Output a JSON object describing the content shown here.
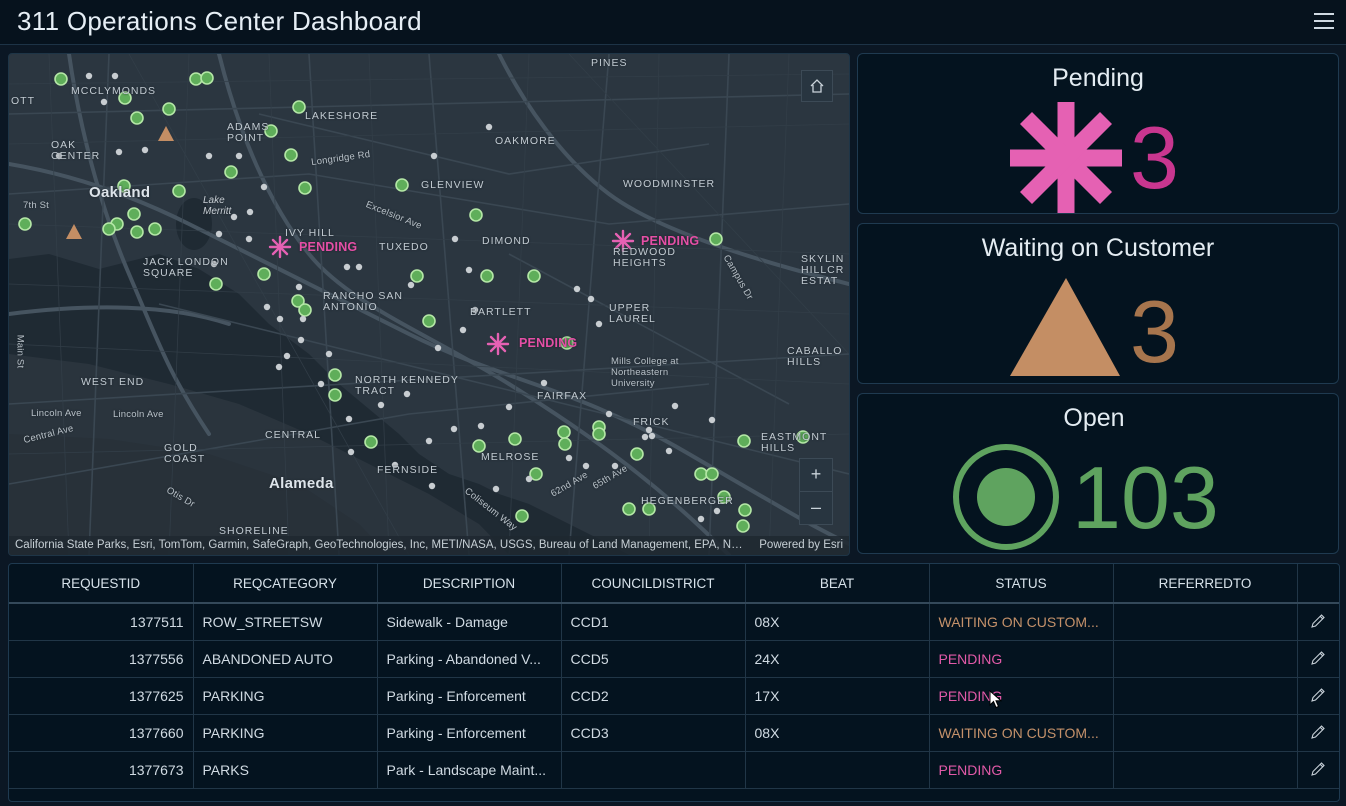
{
  "header": {
    "title": "311 Operations Center Dashboard"
  },
  "map": {
    "labels": {
      "pines": "PINES",
      "mcclymonds": "MCCLYMONDS",
      "ott": "OTT",
      "lakeshore": "LAKESHORE",
      "adams_point": "ADAMS\nPOINT",
      "oak_center": "OAK\nCENTER",
      "longridge": "Longridge Rd",
      "oakmore": "OAKMORE",
      "oakland": "Oakland",
      "glenview": "GLENVIEW",
      "woodminster": "WOODMINSTER",
      "seventh": "7th St",
      "lake_merritt": "Lake\nMerritt",
      "excelsior": "Excelsior Ave",
      "ivy_hill": "IVY HILL",
      "tuxedo": "TUXEDO",
      "dimond": "DIMOND",
      "redwood": "REDWOOD\nHEIGHTS",
      "skyline": "SKYLIN\nHILLCR\nESTAT",
      "jack_london": "JACK LONDON\nSQUARE",
      "campus": "Campus Dr",
      "rancho": "RANCHO SAN\nANTONIO",
      "bartlett": "BARTLETT",
      "upper_laurel": "UPPER\nLAUREL",
      "main_st": "Main St",
      "mills": "Mills College at\nNortheastern\nUniversity",
      "caballo": "CABALLO\nHILLS",
      "west_end": "WEST END",
      "north_kennedy": "NORTH KENNEDY\nTRACT",
      "fairfax": "FAIRFAX",
      "lincoln_ave1": "Lincoln Ave",
      "lincoln_ave2": "Lincoln Ave",
      "central_ave": "Central Ave",
      "frick": "FRICK",
      "central": "CENTRAL",
      "eastmont": "EASTMONT\nHILLS",
      "gold_coast": "GOLD\nCOAST",
      "melrose": "MELROSE",
      "otis": "Otis Dr",
      "fernside": "FERNSIDE",
      "ave62": "62nd Ave",
      "ave65": "65th Ave",
      "alameda": "Alameda",
      "hegenberger": "HEGENBERGER",
      "coliseum": "Coliseum Way",
      "shoreline": "SHORELINE"
    },
    "pending_label": "PENDING",
    "attribution": "California State Parks, Esri, TomTom, Garmin, SafeGraph, GeoTechnologies, Inc, METI/NASA, USGS, Bureau of Land Management, EPA, NPS, US Census Bureau, USDA",
    "powered_by": "Powered by Esri",
    "zoom_in": "+",
    "zoom_out": "–"
  },
  "indicators": [
    {
      "title": "Pending",
      "value": "3",
      "color": "#c8368f",
      "icon": "asterisk-icon",
      "icon_color": "#e561b3"
    },
    {
      "title": "Waiting on Customer",
      "value": "3",
      "color": "#a7754d",
      "icon": "triangle-icon",
      "icon_color": "#c48e64"
    },
    {
      "title": "Open",
      "value": "103",
      "color": "#5fa35f",
      "icon": "target-circle-icon",
      "icon_color": "#5fa35f"
    }
  ],
  "table": {
    "columns": [
      "REQUESTID",
      "REQCATEGORY",
      "DESCRIPTION",
      "COUNCILDISTRICT",
      "BEAT",
      "STATUS",
      "REFERREDTO"
    ],
    "rows": [
      {
        "requestid": "1377511",
        "reqcategory": "ROW_STREETSW",
        "description": "Sidewalk - Damage",
        "councildistrict": "CCD1",
        "beat": "08X",
        "status": "WAITING ON CUSTOM...",
        "status_type": "wait",
        "referredto": ""
      },
      {
        "requestid": "1377556",
        "reqcategory": "ABANDONED AUTO",
        "description": "Parking - Abandoned V...",
        "councildistrict": "CCD5",
        "beat": "24X",
        "status": "PENDING",
        "status_type": "pend",
        "referredto": ""
      },
      {
        "requestid": "1377625",
        "reqcategory": "PARKING",
        "description": "Parking - Enforcement",
        "councildistrict": "CCD2",
        "beat": "17X",
        "status": "PENDING",
        "status_type": "pend",
        "referredto": ""
      },
      {
        "requestid": "1377660",
        "reqcategory": "PARKING",
        "description": "Parking - Enforcement",
        "councildistrict": "CCD3",
        "beat": "08X",
        "status": "WAITING ON CUSTOM...",
        "status_type": "wait",
        "referredto": ""
      },
      {
        "requestid": "1377673",
        "reqcategory": "PARKS",
        "description": "Park - Landscape Maint...",
        "councildistrict": "",
        "beat": "",
        "status": "PENDING",
        "status_type": "pend",
        "referredto": ""
      }
    ]
  },
  "colors": {
    "background": "#0b1724",
    "pending": "#e25aa8",
    "waiting": "#c4916a",
    "open": "#5fa35f"
  }
}
